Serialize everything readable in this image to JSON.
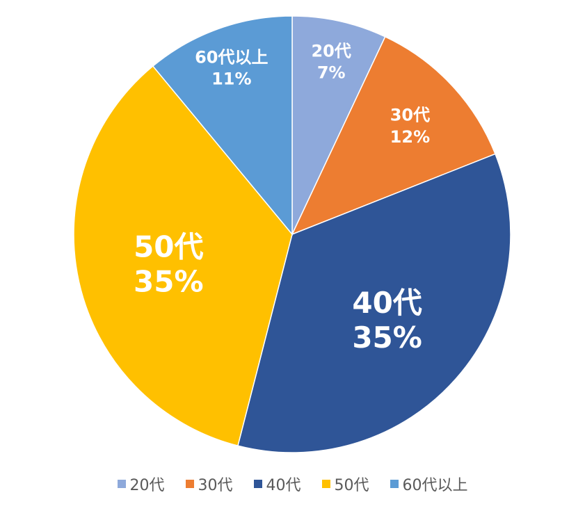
{
  "chart_data": {
    "type": "pie",
    "slices": [
      {
        "label": "20代",
        "value": 7,
        "value_label": "7%",
        "color": "#8EA9DB"
      },
      {
        "label": "30代",
        "value": 12,
        "value_label": "12%",
        "color": "#ED7D31"
      },
      {
        "label": "40代",
        "value": 35,
        "value_label": "35%",
        "color": "#2F5597"
      },
      {
        "label": "50代",
        "value": 35,
        "value_label": "35%",
        "color": "#FFC000"
      },
      {
        "label": "60代以上",
        "value": 11,
        "value_label": "11%",
        "color": "#5B9BD5"
      }
    ],
    "legend_position": "bottom"
  }
}
